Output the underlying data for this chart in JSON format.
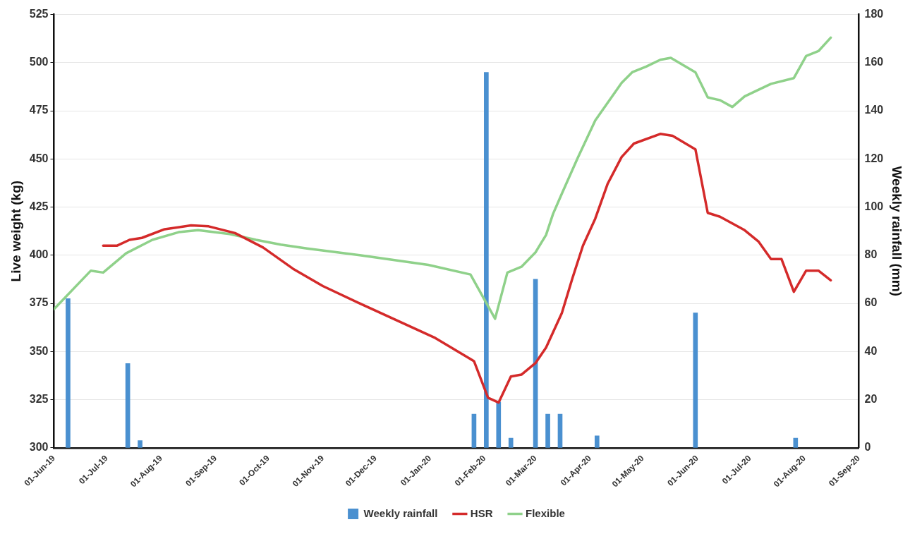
{
  "chart_data": {
    "type": "line",
    "ylabel": "Live weight (kg)",
    "y2label": "Weekly rainfall (mm)",
    "xlim": [
      "2019-06-01",
      "2020-09-01"
    ],
    "xticks": [
      {
        "value": "2019-06-01",
        "label": "01-Jun-19"
      },
      {
        "value": "2019-07-01",
        "label": "01-Jul-19"
      },
      {
        "value": "2019-08-01",
        "label": "01-Aug-19"
      },
      {
        "value": "2019-09-01",
        "label": "01-Sep-19"
      },
      {
        "value": "2019-10-01",
        "label": "01-Oct-19"
      },
      {
        "value": "2019-11-01",
        "label": "01-Nov-19"
      },
      {
        "value": "2019-12-01",
        "label": "01-Dec-19"
      },
      {
        "value": "2020-01-01",
        "label": "01-Jan-20"
      },
      {
        "value": "2020-02-01",
        "label": "01-Feb-20"
      },
      {
        "value": "2020-03-01",
        "label": "01-Mar-20"
      },
      {
        "value": "2020-04-01",
        "label": "01-Apr-20"
      },
      {
        "value": "2020-05-01",
        "label": "01-May-20"
      },
      {
        "value": "2020-06-01",
        "label": "01-Jun-20"
      },
      {
        "value": "2020-07-01",
        "label": "01-Jul-20"
      },
      {
        "value": "2020-08-01",
        "label": "01-Aug-20"
      },
      {
        "value": "2020-09-01",
        "label": "01-Sep-20"
      }
    ],
    "ylim": [
      300,
      525
    ],
    "yticks": [
      300,
      325,
      350,
      375,
      400,
      425,
      450,
      475,
      500,
      525
    ],
    "y2lim": [
      0,
      180
    ],
    "y2ticks": [
      0,
      20,
      40,
      60,
      80,
      100,
      120,
      140,
      160,
      180
    ],
    "grid": "y",
    "legend": "bottom",
    "marker": "none",
    "series": [
      {
        "name": "Weekly rainfall",
        "type": "bar",
        "axis": "y2",
        "color": "#4a90d0",
        "x": [
          "2019-06-09",
          "2019-07-13",
          "2019-07-20",
          "2020-01-26",
          "2020-02-02",
          "2020-02-09",
          "2020-02-16",
          "2020-03-01",
          "2020-03-08",
          "2020-03-15",
          "2020-04-05",
          "2020-05-31",
          "2020-07-27"
        ],
        "values": [
          62,
          35,
          3,
          14,
          156,
          19,
          4,
          70,
          14,
          14,
          5,
          56,
          4
        ]
      },
      {
        "name": "HSR",
        "color": "#d42a2a",
        "x": [
          "2019-06-29",
          "2019-07-07",
          "2019-07-14",
          "2019-07-21",
          "2019-08-03",
          "2019-08-18",
          "2019-08-28",
          "2019-09-12",
          "2019-09-28",
          "2019-10-15",
          "2019-11-01",
          "2019-11-22",
          "2020-01-04",
          "2020-01-26",
          "2020-02-03",
          "2020-02-09",
          "2020-02-16",
          "2020-02-22",
          "2020-03-01",
          "2020-03-07",
          "2020-03-16",
          "2020-03-22",
          "2020-03-28",
          "2020-04-04",
          "2020-04-11",
          "2020-04-19",
          "2020-04-26",
          "2020-05-11",
          "2020-05-18",
          "2020-05-31",
          "2020-06-07",
          "2020-06-14",
          "2020-06-28",
          "2020-07-06",
          "2020-07-13",
          "2020-07-19",
          "2020-07-26",
          "2020-08-02",
          "2020-08-09",
          "2020-08-16"
        ],
        "values": [
          405,
          405,
          408,
          409,
          413.5,
          415.5,
          415,
          411.5,
          404,
          393,
          384,
          375,
          357,
          345,
          326,
          323.5,
          337,
          338,
          344,
          352,
          370,
          388,
          405,
          419,
          437,
          451,
          458,
          463,
          462,
          455,
          422,
          420,
          413,
          407,
          398,
          398,
          381,
          392,
          392,
          387
        ]
      },
      {
        "name": "Flexible",
        "color": "#8fd18a",
        "x": [
          "2019-06-01",
          "2019-06-22",
          "2019-06-29",
          "2019-07-12",
          "2019-07-27",
          "2019-08-11",
          "2019-08-22",
          "2019-09-09",
          "2019-09-24",
          "2019-10-08",
          "2019-10-23",
          "2019-11-22",
          "2019-12-31",
          "2020-01-24",
          "2020-02-07",
          "2020-02-14",
          "2020-02-22",
          "2020-03-01",
          "2020-03-07",
          "2020-03-11",
          "2020-03-16",
          "2020-03-25",
          "2020-04-04",
          "2020-04-19",
          "2020-04-25",
          "2020-05-03",
          "2020-05-11",
          "2020-05-17",
          "2020-05-31",
          "2020-06-07",
          "2020-06-14",
          "2020-06-21",
          "2020-06-28",
          "2020-07-06",
          "2020-07-13",
          "2020-07-26",
          "2020-08-02",
          "2020-08-09",
          "2020-08-16"
        ],
        "values": [
          372,
          392,
          391,
          401,
          408,
          412,
          413,
          411,
          408,
          405.5,
          403.5,
          400,
          395,
          390,
          367,
          391,
          394,
          401.5,
          410.5,
          421.5,
          432,
          450.5,
          470,
          489.5,
          495,
          498,
          501.5,
          502.5,
          495,
          482,
          480.5,
          477,
          482.5,
          486,
          489,
          492,
          503.5,
          506,
          513
        ]
      }
    ]
  }
}
